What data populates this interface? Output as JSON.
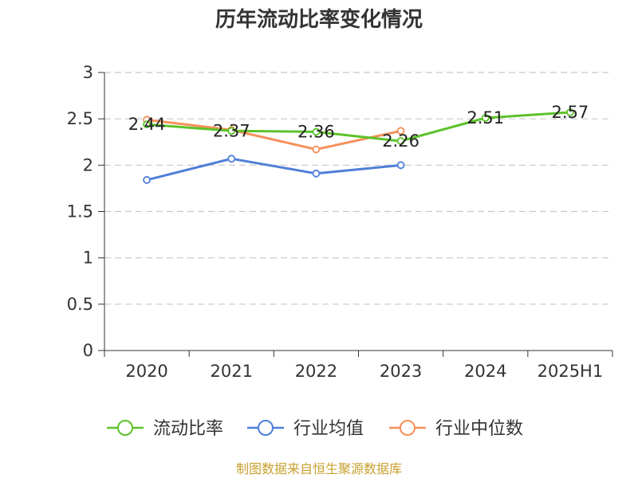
{
  "chart_data": {
    "type": "line",
    "title": "历年流动比率变化情况",
    "categories": [
      "2020",
      "2021",
      "2022",
      "2023",
      "2024",
      "2025H1"
    ],
    "ylim": [
      0,
      3
    ],
    "yticks": [
      "0",
      "0.5",
      "1",
      "1.5",
      "2",
      "2.5",
      "3"
    ],
    "grid": true,
    "legend_position": "bottom",
    "series": [
      {
        "name": "流动比率",
        "color": "#5cc22a",
        "values": [
          2.44,
          2.37,
          2.36,
          2.26,
          2.51,
          2.57
        ],
        "labels": [
          "2.44",
          "2.37",
          "2.36",
          "2.26",
          "2.51",
          "2.57"
        ]
      },
      {
        "name": "行业均值",
        "color": "#4f7fd8",
        "values": [
          1.84,
          2.07,
          1.91,
          2.0,
          null,
          null
        ]
      },
      {
        "name": "行业中位数",
        "color": "#f5905a",
        "values": [
          2.49,
          2.38,
          2.17,
          2.37,
          null,
          null
        ]
      }
    ]
  },
  "source_text": "制图数据来自恒生聚源数据库",
  "source_color": "#c8a030"
}
